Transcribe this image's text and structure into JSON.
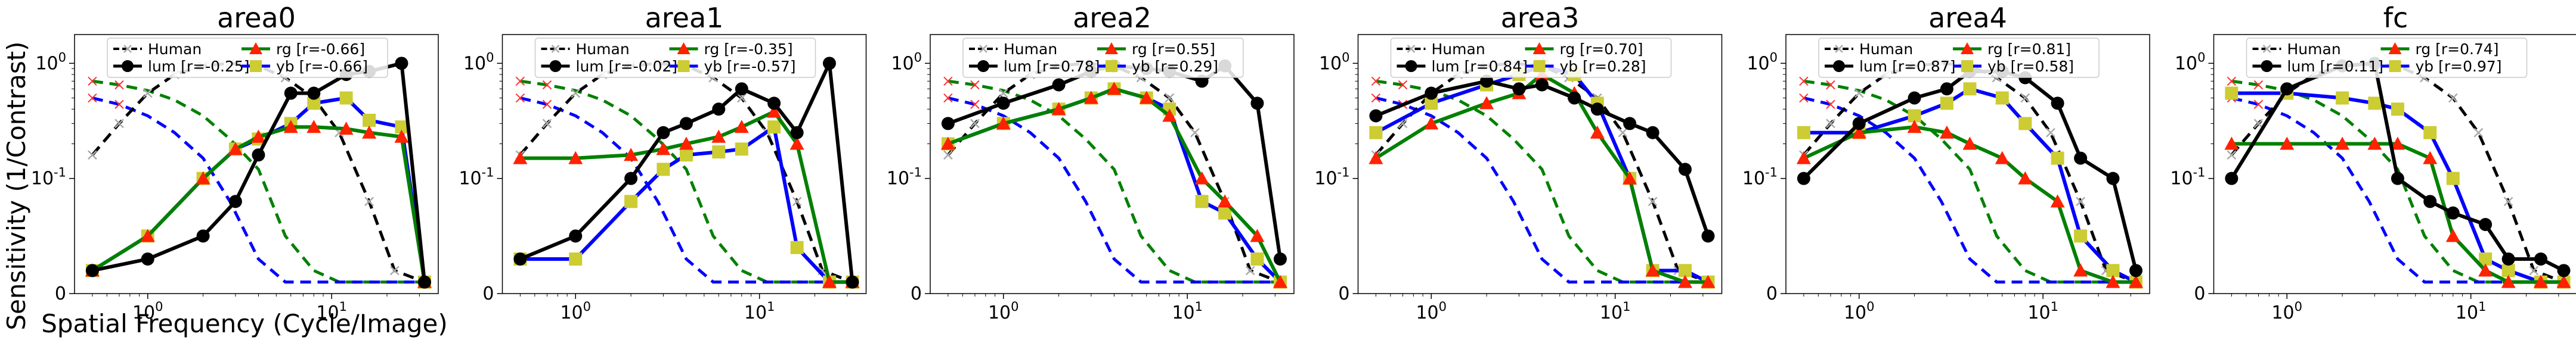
{
  "figure": {
    "ylabel": "Sensitivity (1/Contrast)",
    "xlabel": "Spatial Frequency (Cycle/Image)"
  },
  "chart_data": [
    {
      "type": "line",
      "title": "area0",
      "x_scale": "log",
      "y_scale": "symlog",
      "legend": "upper-center",
      "x_ticks": [
        "10^0",
        "10^1"
      ],
      "y_ticks": [
        "0",
        "10^-1",
        "10^0"
      ],
      "legend_labels": {
        "human": "Human",
        "lum": "lum [r=-0.25]",
        "rg": "rg [r=-0.66]",
        "yb": "yb [r=-0.66]"
      },
      "series": [
        {
          "name": "lum",
          "x": [
            0.5,
            1,
            2,
            3,
            4,
            6,
            8,
            12,
            16,
            24,
            32
          ],
          "y": [
            0.02,
            0.03,
            0.05,
            0.08,
            0.16,
            0.55,
            0.55,
            0.8,
            0.85,
            1.0,
            0.01
          ]
        },
        {
          "name": "rg",
          "x": [
            0.5,
            1,
            2,
            3,
            4,
            6,
            8,
            12,
            16,
            24,
            32
          ],
          "y": [
            0.02,
            0.05,
            0.1,
            0.18,
            0.23,
            0.28,
            0.28,
            0.27,
            0.25,
            0.23,
            0.01
          ]
        },
        {
          "name": "yb",
          "x": [
            0.5,
            1,
            2,
            3,
            4,
            6,
            8,
            12,
            16,
            24,
            32
          ],
          "y": [
            0.02,
            0.05,
            0.1,
            0.18,
            0.22,
            0.3,
            0.45,
            0.5,
            0.32,
            0.28,
            0.01
          ]
        }
      ]
    },
    {
      "type": "line",
      "title": "area1",
      "x_scale": "log",
      "y_scale": "symlog",
      "legend": "upper-center",
      "x_ticks": [
        "10^0",
        "10^1"
      ],
      "y_ticks": [
        "0",
        "10^-1",
        "10^0"
      ],
      "legend_labels": {
        "human": "Human",
        "lum": "lum [r=-0.02]",
        "rg": "rg [r=-0.35]",
        "yb": "yb [r=-0.57]"
      },
      "series": [
        {
          "name": "lum",
          "x": [
            0.5,
            1,
            2,
            3,
            4,
            6,
            8,
            12,
            16,
            24,
            32
          ],
          "y": [
            0.03,
            0.05,
            0.1,
            0.25,
            0.3,
            0.4,
            0.6,
            0.45,
            0.25,
            1.0,
            0.01
          ]
        },
        {
          "name": "rg",
          "x": [
            0.5,
            1,
            2,
            3,
            4,
            6,
            8,
            12,
            16,
            24,
            32
          ],
          "y": [
            0.15,
            0.15,
            0.16,
            0.18,
            0.2,
            0.23,
            0.28,
            0.38,
            0.2,
            0.01,
            0.01
          ]
        },
        {
          "name": "yb",
          "x": [
            0.5,
            1,
            2,
            3,
            4,
            6,
            8,
            12,
            16,
            24,
            32
          ],
          "y": [
            0.03,
            0.03,
            0.08,
            0.12,
            0.16,
            0.17,
            0.18,
            0.28,
            0.04,
            0.01,
            0.01
          ]
        }
      ]
    },
    {
      "type": "line",
      "title": "area2",
      "x_scale": "log",
      "y_scale": "symlog",
      "legend": "upper-center",
      "x_ticks": [
        "10^0",
        "10^1"
      ],
      "y_ticks": [
        "0",
        "10^-1",
        "10^0"
      ],
      "legend_labels": {
        "human": "Human",
        "lum": "lum [r=0.78]",
        "rg": "rg [r=0.55]",
        "yb": "yb [r=0.29]"
      },
      "series": [
        {
          "name": "lum",
          "x": [
            0.5,
            1,
            2,
            3,
            4,
            6,
            8,
            12,
            16,
            24,
            32
          ],
          "y": [
            0.3,
            0.45,
            0.65,
            0.85,
            0.95,
            0.9,
            0.85,
            0.7,
            0.95,
            0.45,
            0.03
          ]
        },
        {
          "name": "rg",
          "x": [
            0.5,
            1,
            2,
            3,
            4,
            6,
            8,
            12,
            16,
            24,
            32
          ],
          "y": [
            0.2,
            0.3,
            0.4,
            0.5,
            0.6,
            0.5,
            0.35,
            0.1,
            0.08,
            0.05,
            0.01
          ]
        },
        {
          "name": "yb",
          "x": [
            0.5,
            1,
            2,
            3,
            4,
            6,
            8,
            12,
            16,
            24,
            32
          ],
          "y": [
            0.2,
            0.3,
            0.4,
            0.5,
            0.6,
            0.5,
            0.4,
            0.08,
            0.07,
            0.03,
            0.01
          ]
        }
      ]
    },
    {
      "type": "line",
      "title": "area3",
      "x_scale": "log",
      "y_scale": "symlog",
      "legend": "upper-center",
      "x_ticks": [
        "10^0",
        "10^1"
      ],
      "y_ticks": [
        "0",
        "10^-1",
        "10^0"
      ],
      "legend_labels": {
        "human": "Human",
        "lum": "lum [r=0.84]",
        "rg": "rg [r=0.70]",
        "yb": "yb [r=0.28]"
      },
      "series": [
        {
          "name": "lum",
          "x": [
            0.5,
            1,
            2,
            3,
            4,
            6,
            8,
            12,
            16,
            24,
            32
          ],
          "y": [
            0.35,
            0.55,
            0.7,
            0.6,
            0.65,
            0.5,
            0.4,
            0.3,
            0.25,
            0.12,
            0.05
          ]
        },
        {
          "name": "rg",
          "x": [
            0.5,
            1,
            2,
            3,
            4,
            6,
            8,
            12,
            16,
            24,
            32
          ],
          "y": [
            0.15,
            0.3,
            0.45,
            0.55,
            0.8,
            0.55,
            0.25,
            0.1,
            0.02,
            0.01,
            0.01
          ]
        },
        {
          "name": "yb",
          "x": [
            0.5,
            1,
            2,
            3,
            4,
            6,
            8,
            12,
            16,
            24,
            32
          ],
          "y": [
            0.25,
            0.45,
            0.65,
            0.8,
            0.95,
            0.8,
            0.45,
            0.1,
            0.02,
            0.02,
            0.01
          ]
        }
      ]
    },
    {
      "type": "line",
      "title": "area4",
      "x_scale": "log",
      "y_scale": "symlog",
      "legend": "upper-center",
      "x_ticks": [
        "10^0",
        "10^1"
      ],
      "y_ticks": [
        "0",
        "10^-1",
        "10^0"
      ],
      "legend_labels": {
        "human": "Human",
        "lum": "lum [r=0.87]",
        "rg": "rg [r=0.81]",
        "yb": "yb [r=0.58]"
      },
      "series": [
        {
          "name": "lum",
          "x": [
            0.5,
            1,
            2,
            3,
            4,
            6,
            8,
            12,
            16,
            24,
            32
          ],
          "y": [
            0.1,
            0.3,
            0.5,
            0.6,
            0.85,
            0.85,
            0.75,
            0.45,
            0.15,
            0.1,
            0.02
          ]
        },
        {
          "name": "rg",
          "x": [
            0.5,
            1,
            2,
            3,
            4,
            6,
            8,
            12,
            16,
            24,
            32
          ],
          "y": [
            0.15,
            0.25,
            0.28,
            0.25,
            0.2,
            0.15,
            0.1,
            0.08,
            0.02,
            0.01,
            0.01
          ]
        },
        {
          "name": "yb",
          "x": [
            0.5,
            1,
            2,
            3,
            4,
            6,
            8,
            12,
            16,
            24,
            32
          ],
          "y": [
            0.25,
            0.25,
            0.35,
            0.45,
            0.6,
            0.5,
            0.3,
            0.15,
            0.05,
            0.02,
            0.01
          ]
        }
      ]
    },
    {
      "type": "line",
      "title": "fc",
      "x_scale": "log",
      "y_scale": "symlog",
      "legend": "upper-center",
      "x_ticks": [
        "10^0",
        "10^1"
      ],
      "y_ticks": [
        "0",
        "10^-1",
        "10^0"
      ],
      "legend_labels": {
        "human": "Human",
        "lum": "lum [r=0.11]",
        "rg": "rg [r=0.74]",
        "yb": "yb [r=0.97]"
      },
      "series": [
        {
          "name": "lum",
          "x": [
            0.5,
            1,
            2,
            3,
            4,
            6,
            8,
            12,
            16,
            24,
            32
          ],
          "y": [
            0.1,
            0.6,
            0.95,
            1.0,
            0.1,
            0.08,
            0.07,
            0.06,
            0.03,
            0.03,
            0.02
          ]
        },
        {
          "name": "rg",
          "x": [
            0.5,
            1,
            2,
            3,
            4,
            6,
            8,
            12,
            16,
            24,
            32
          ],
          "y": [
            0.2,
            0.2,
            0.2,
            0.2,
            0.2,
            0.15,
            0.05,
            0.02,
            0.01,
            0.01,
            0.01
          ]
        },
        {
          "name": "yb",
          "x": [
            0.5,
            1,
            2,
            3,
            4,
            6,
            8,
            12,
            16,
            24,
            32
          ],
          "y": [
            0.55,
            0.55,
            0.5,
            0.45,
            0.4,
            0.25,
            0.1,
            0.03,
            0.02,
            0.01,
            0.01
          ]
        }
      ]
    }
  ],
  "reference_curves": {
    "x": [
      0.5,
      0.7,
      1,
      1.4,
      2,
      2.8,
      4,
      5.6,
      8,
      11,
      16,
      22,
      32
    ],
    "human": [
      0.16,
      0.3,
      0.55,
      0.8,
      0.95,
      1.0,
      0.95,
      0.75,
      0.5,
      0.25,
      0.08,
      0.02,
      0.01
    ],
    "rg": [
      0.7,
      0.65,
      0.58,
      0.48,
      0.35,
      0.22,
      0.12,
      0.05,
      0.02,
      0.01,
      0.01,
      0.01,
      0.01
    ],
    "yb": [
      0.5,
      0.44,
      0.35,
      0.25,
      0.15,
      0.08,
      0.03,
      0.01,
      0.01,
      0.01,
      0.01,
      0.01,
      0.01
    ]
  },
  "colors": {
    "human": "#000000",
    "human_marker": "#aaaaaa",
    "lum": "#000000",
    "rg": "#008000",
    "rg_marker": "#ff2200",
    "yb": "#0000ff",
    "yb_marker": "#cccc33",
    "axes": "#000000",
    "tick_marker": "#ff3333"
  }
}
